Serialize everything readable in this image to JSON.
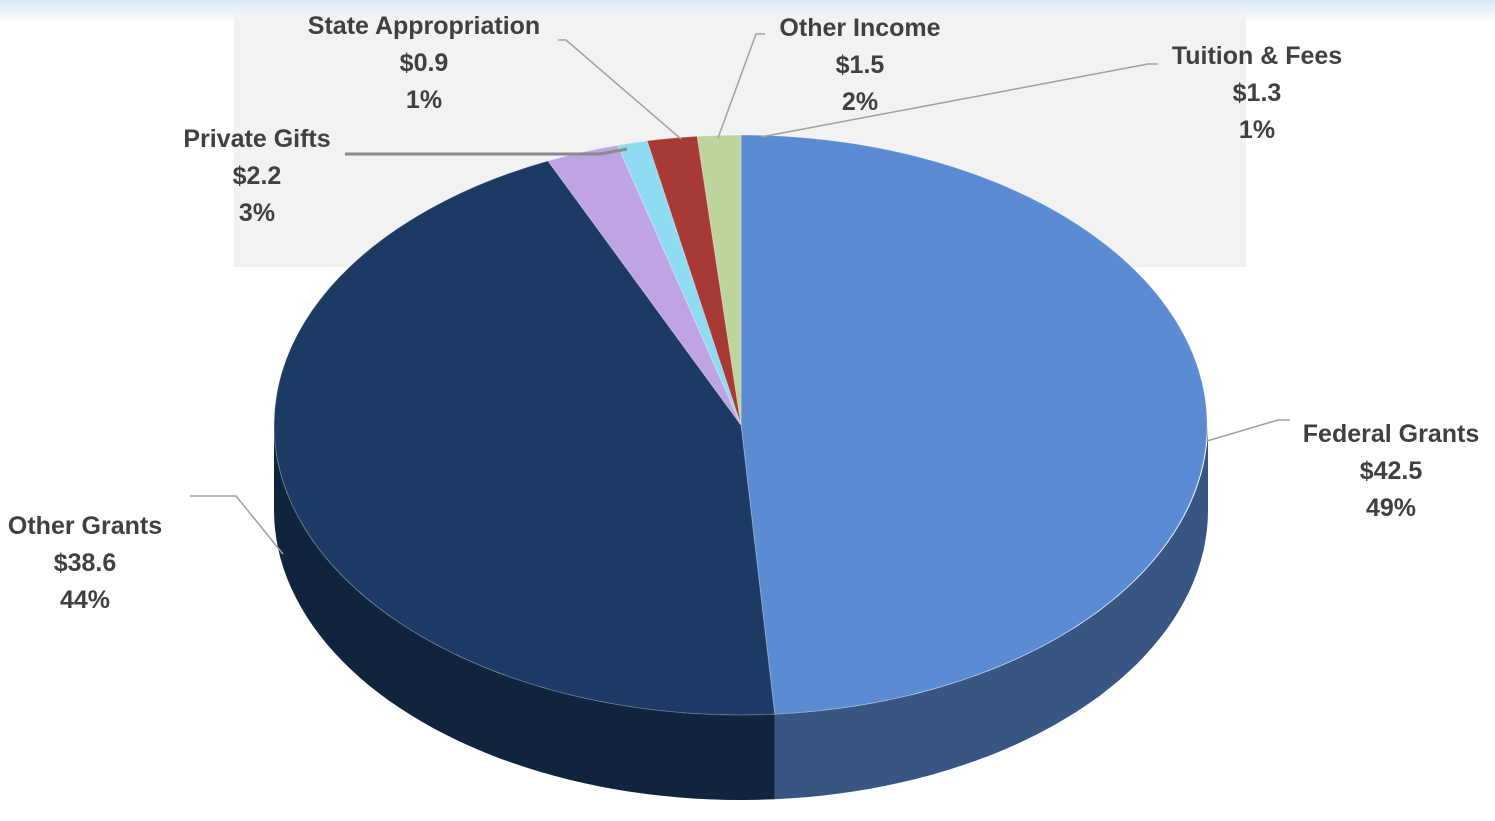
{
  "chart_data": {
    "type": "pie",
    "slices": [
      {
        "name": "Federal Grants",
        "value": 42.5,
        "value_label": "$42.5",
        "percent_label": "49%",
        "color": "#5b8bd3"
      },
      {
        "name": "Other Grants",
        "value": 38.6,
        "value_label": "$38.6",
        "percent_label": "44%",
        "color": "#1c3a63"
      },
      {
        "name": "Private Gifts",
        "value": 2.2,
        "value_label": "$2.2",
        "percent_label": "3%",
        "color": "#bfa4e3"
      },
      {
        "name": "State Appropriation",
        "value": 0.9,
        "value_label": "$0.9",
        "percent_label": "1%",
        "color": "#8fdcf2"
      },
      {
        "name": "Other Income",
        "value": 1.5,
        "value_label": "$1.5",
        "percent_label": "2%",
        "color": "#a83a36"
      },
      {
        "name": "Tuition & Fees",
        "value": 1.3,
        "value_label": "$1.3",
        "percent_label": "1%",
        "color": "#bdd59c"
      }
    ],
    "style": "3d-pie",
    "legend": "none"
  }
}
